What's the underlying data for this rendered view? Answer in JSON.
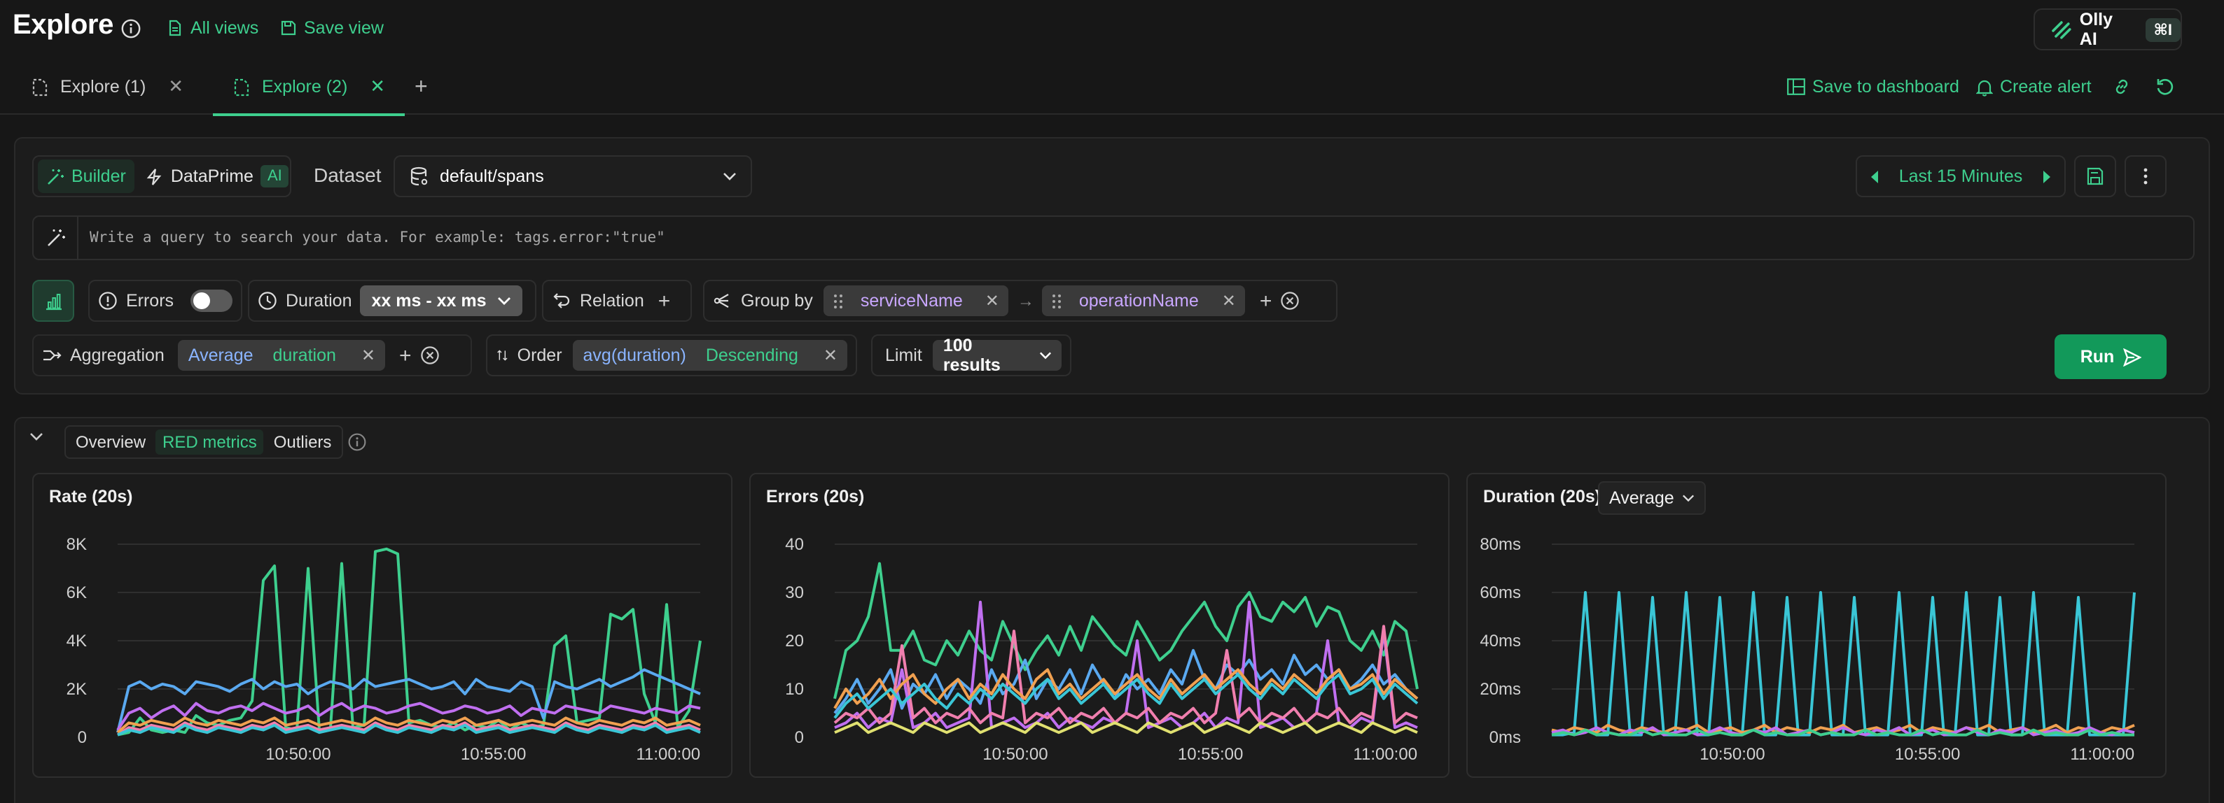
{
  "header": {
    "title": "Explore",
    "all_views": "All views",
    "save_view": "Save view",
    "olly": "Olly AI",
    "olly_shortcut": "⌘I"
  },
  "tabs": [
    {
      "label": "Explore (1)",
      "active": false
    },
    {
      "label": "Explore (2)",
      "active": true
    }
  ],
  "tab_actions": {
    "save_dashboard": "Save to dashboard",
    "create_alert": "Create alert"
  },
  "query": {
    "mode_builder": "Builder",
    "mode_dataprime": "DataPrime",
    "ai_badge": "AI",
    "dataset_label": "Dataset",
    "dataset_value": "default/spans",
    "time_range": "Last 15 Minutes",
    "placeholder": "Write a query to search your data. For example: tags.error:\"true\"",
    "errors_label": "Errors",
    "duration_label": "Duration",
    "duration_value": "xx ms - xx ms",
    "relation_label": "Relation",
    "groupby_label": "Group by",
    "groupby": [
      "serviceName",
      "operationName"
    ],
    "aggregation_label": "Aggregation",
    "aggregation_func": "Average",
    "aggregation_field": "duration",
    "order_label": "Order",
    "order_field": "avg(duration)",
    "order_dir": "Descending",
    "limit_label": "Limit",
    "limit_value": "100 results",
    "run": "Run"
  },
  "results_tabs": [
    "Overview",
    "RED metrics",
    "Outliers"
  ],
  "results_tab_active": "RED metrics",
  "colors": {
    "accent": "#3ecf8e",
    "series": [
      "#3ecf8e",
      "#5aa9f0",
      "#c06ff0",
      "#f07fae",
      "#f0a050",
      "#3ac6d6",
      "#e0e070",
      "#e06666"
    ]
  },
  "chart_data": [
    {
      "type": "line",
      "title": "Rate (20s)",
      "y_ticks": [
        "8K",
        "6K",
        "4K",
        "2K",
        "0"
      ],
      "x_ticks": [
        "10:50:00",
        "10:55:00",
        "11:00:00"
      ],
      "ylim": [
        0,
        8000
      ],
      "grid": true,
      "series": [
        {
          "color": "#3ecf8e",
          "values": [
            100,
            200,
            800,
            300,
            200,
            300,
            200,
            900,
            600,
            500,
            700,
            800,
            1500,
            6500,
            7100,
            400,
            300,
            7000,
            300,
            400,
            7200,
            400,
            500,
            7700,
            7800,
            7600,
            600,
            700,
            500,
            400,
            600,
            300,
            500,
            400,
            700,
            300,
            600,
            400,
            500,
            3800,
            4200,
            600,
            700,
            800,
            5100,
            4900,
            5300,
            1800,
            600,
            5500,
            400,
            1100,
            4000
          ]
        },
        {
          "color": "#5aa9f0",
          "values": [
            200,
            2100,
            2300,
            2000,
            2200,
            2100,
            1800,
            2300,
            2200,
            2100,
            1900,
            2200,
            2400,
            2000,
            2300,
            2100,
            2200,
            1800,
            2100,
            2300,
            2200,
            2000,
            2400,
            2100,
            2200,
            2300,
            2400,
            2200,
            2000,
            2100,
            2300,
            1800,
            2400,
            2100,
            2000,
            1900,
            2300,
            2100,
            800,
            2300,
            2100,
            2000,
            2200,
            2400,
            2100,
            2300,
            2500,
            2800,
            2600,
            2400,
            2200,
            2000,
            1800
          ]
        },
        {
          "color": "#c06ff0",
          "values": [
            300,
            1000,
            1200,
            800,
            1100,
            1300,
            900,
            1400,
            1100,
            1000,
            1200,
            1300,
            1100,
            1400,
            1200,
            1000,
            1100,
            1300,
            900,
            1200,
            1400,
            1100,
            1300,
            1200,
            1000,
            1100,
            1300,
            1400,
            1200,
            1000,
            1100,
            1300,
            1200,
            1000,
            1100,
            1300,
            900,
            1200,
            1100,
            1000,
            1300,
            1200,
            1100,
            1000,
            1300,
            1200,
            1100,
            1000,
            1200,
            1100,
            1000,
            1300,
            1200
          ]
        },
        {
          "color": "#f07fae",
          "values": [
            100,
            400,
            300,
            500,
            400,
            300,
            600,
            400,
            300,
            500,
            400,
            300,
            500,
            400,
            600,
            300,
            400,
            500,
            300,
            400,
            500,
            400,
            300,
            600,
            400,
            300,
            500,
            400,
            300,
            500,
            400,
            600,
            300,
            400,
            500,
            300,
            400,
            500,
            400,
            300,
            600,
            400,
            300,
            500,
            400,
            300,
            500,
            400,
            600,
            300,
            400,
            500,
            300
          ]
        },
        {
          "color": "#f0a050",
          "values": [
            200,
            600,
            500,
            700,
            600,
            500,
            800,
            600,
            500,
            700,
            600,
            500,
            700,
            600,
            800,
            500,
            600,
            700,
            500,
            600,
            700,
            600,
            500,
            800,
            600,
            500,
            700,
            600,
            500,
            700,
            600,
            800,
            500,
            600,
            700,
            500,
            600,
            700,
            600,
            500,
            800,
            600,
            500,
            700,
            600,
            500,
            700,
            600,
            800,
            500,
            600,
            700,
            500
          ]
        },
        {
          "color": "#3ac6d6",
          "values": [
            100,
            300,
            200,
            400,
            300,
            200,
            500,
            300,
            200,
            400,
            300,
            200,
            400,
            300,
            500,
            200,
            300,
            400,
            200,
            300,
            400,
            300,
            200,
            500,
            300,
            200,
            400,
            300,
            200,
            400,
            300,
            500,
            200,
            300,
            400,
            200,
            300,
            400,
            300,
            200,
            500,
            300,
            200,
            400,
            300,
            200,
            400,
            300,
            500,
            200,
            300,
            400,
            200
          ]
        }
      ]
    },
    {
      "type": "line",
      "title": "Errors (20s)",
      "y_ticks": [
        "40",
        "30",
        "20",
        "10",
        "0"
      ],
      "x_ticks": [
        "10:50:00",
        "10:55:00",
        "11:00:00"
      ],
      "ylim": [
        0,
        40
      ],
      "grid": true,
      "series": [
        {
          "color": "#3ecf8e",
          "values": [
            8,
            18,
            20,
            25,
            36,
            18,
            18,
            22,
            16,
            15,
            20,
            17,
            22,
            18,
            16,
            24,
            19,
            14,
            18,
            21,
            17,
            23,
            18,
            25,
            22,
            19,
            17,
            24,
            20,
            16,
            18,
            22,
            25,
            28,
            23,
            20,
            27,
            30,
            25,
            24,
            28,
            26,
            29,
            23,
            27,
            26,
            20,
            18,
            22,
            17,
            24,
            22,
            10
          ]
        },
        {
          "color": "#5aa9f0",
          "values": [
            5,
            8,
            12,
            7,
            10,
            14,
            6,
            11,
            9,
            13,
            8,
            12,
            10,
            7,
            14,
            9,
            11,
            16,
            8,
            12,
            10,
            14,
            9,
            15,
            11,
            8,
            13,
            10,
            12,
            9,
            14,
            11,
            18,
            12,
            10,
            15,
            13,
            16,
            12,
            14,
            11,
            17,
            13,
            15,
            12,
            14,
            10,
            12,
            15,
            11,
            13,
            10,
            8
          ]
        },
        {
          "color": "#c06ff0",
          "values": [
            2,
            3,
            5,
            2,
            4,
            3,
            14,
            2,
            3,
            5,
            2,
            3,
            4,
            28,
            2,
            3,
            4,
            2,
            3,
            5,
            2,
            4,
            3,
            2,
            4,
            3,
            5,
            20,
            2,
            3,
            4,
            2,
            3,
            5,
            2,
            4,
            3,
            28,
            2,
            3,
            4,
            2,
            3,
            5,
            20,
            3,
            2,
            4,
            3,
            22,
            2,
            3,
            2
          ]
        },
        {
          "color": "#f07fae",
          "values": [
            3,
            5,
            4,
            6,
            3,
            5,
            19,
            4,
            6,
            3,
            5,
            4,
            6,
            3,
            5,
            4,
            22,
            3,
            5,
            4,
            6,
            3,
            5,
            4,
            6,
            3,
            5,
            4,
            6,
            3,
            5,
            4,
            6,
            3,
            5,
            18,
            4,
            6,
            3,
            5,
            4,
            6,
            3,
            5,
            4,
            6,
            3,
            5,
            4,
            23,
            3,
            5,
            4
          ]
        },
        {
          "color": "#f0a050",
          "values": [
            6,
            10,
            7,
            9,
            12,
            8,
            11,
            13,
            9,
            7,
            10,
            12,
            8,
            11,
            9,
            13,
            10,
            8,
            12,
            14,
            9,
            11,
            8,
            10,
            12,
            9,
            11,
            13,
            10,
            8,
            12,
            9,
            11,
            13,
            10,
            12,
            14,
            11,
            9,
            12,
            10,
            13,
            11,
            9,
            12,
            14,
            10,
            11,
            13,
            9,
            12,
            10,
            8
          ]
        },
        {
          "color": "#3ac6d6",
          "values": [
            4,
            7,
            9,
            6,
            8,
            10,
            7,
            9,
            11,
            8,
            6,
            9,
            7,
            10,
            8,
            11,
            9,
            7,
            10,
            12,
            8,
            10,
            7,
            9,
            11,
            8,
            10,
            12,
            9,
            7,
            11,
            8,
            10,
            12,
            9,
            11,
            13,
            10,
            8,
            11,
            9,
            12,
            10,
            8,
            11,
            13,
            9,
            10,
            12,
            8,
            11,
            9,
            7
          ]
        },
        {
          "color": "#e0e070",
          "values": [
            1,
            2,
            3,
            1,
            2,
            3,
            2,
            1,
            3,
            2,
            1,
            2,
            3,
            1,
            2,
            3,
            2,
            1,
            3,
            2,
            1,
            2,
            3,
            1,
            2,
            3,
            2,
            1,
            3,
            2,
            1,
            2,
            3,
            1,
            2,
            3,
            2,
            1,
            3,
            2,
            1,
            2,
            3,
            1,
            2,
            3,
            2,
            1,
            3,
            2,
            1,
            2,
            1
          ]
        }
      ]
    },
    {
      "type": "line",
      "title": "Duration (20s)",
      "aggregation": "Average",
      "y_ticks": [
        "80ms",
        "60ms",
        "40ms",
        "20ms",
        "0ms"
      ],
      "x_ticks": [
        "10:50:00",
        "10:55:00",
        "11:00:00"
      ],
      "ylim": [
        0,
        80
      ],
      "grid": true,
      "series": [
        {
          "color": "#3ac6d6",
          "values": [
            1,
            1,
            2,
            60,
            1,
            1,
            60,
            1,
            1,
            58,
            1,
            1,
            60,
            1,
            1,
            58,
            1,
            1,
            60,
            1,
            1,
            58,
            1,
            1,
            60,
            1,
            1,
            58,
            1,
            1,
            1,
            60,
            1,
            1,
            58,
            1,
            1,
            60,
            1,
            1,
            58,
            1,
            1,
            60,
            1,
            1,
            1,
            58,
            1,
            1,
            1,
            1,
            60
          ]
        },
        {
          "color": "#f0a050",
          "values": [
            3,
            2,
            4,
            3,
            2,
            5,
            3,
            2,
            4,
            3,
            2,
            4,
            3,
            5,
            2,
            3,
            4,
            2,
            3,
            5,
            2,
            4,
            3,
            2,
            4,
            3,
            5,
            2,
            3,
            4,
            2,
            3,
            5,
            2,
            4,
            3,
            2,
            4,
            3,
            5,
            2,
            3,
            4,
            2,
            3,
            5,
            2,
            4,
            3,
            2,
            4,
            3,
            5
          ]
        },
        {
          "color": "#c06ff0",
          "values": [
            2,
            3,
            1,
            2,
            4,
            2,
            1,
            3,
            2,
            4,
            1,
            2,
            3,
            1,
            2,
            4,
            2,
            1,
            3,
            2,
            4,
            1,
            2,
            3,
            1,
            2,
            4,
            2,
            1,
            3,
            2,
            4,
            1,
            2,
            3,
            1,
            2,
            4,
            2,
            1,
            3,
            2,
            4,
            1,
            2,
            3,
            1,
            2,
            4,
            2,
            1,
            3,
            2
          ]
        },
        {
          "color": "#3ecf8e",
          "values": [
            1,
            2,
            1,
            3,
            1,
            2,
            1,
            1,
            3,
            1,
            2,
            1,
            1,
            3,
            1,
            2,
            1,
            1,
            3,
            1,
            2,
            1,
            1,
            3,
            1,
            2,
            1,
            1,
            3,
            1,
            2,
            1,
            1,
            3,
            1,
            2,
            1,
            1,
            3,
            1,
            2,
            1,
            1,
            3,
            1,
            2,
            1,
            1,
            3,
            1,
            2,
            1,
            1
          ]
        }
      ]
    }
  ]
}
